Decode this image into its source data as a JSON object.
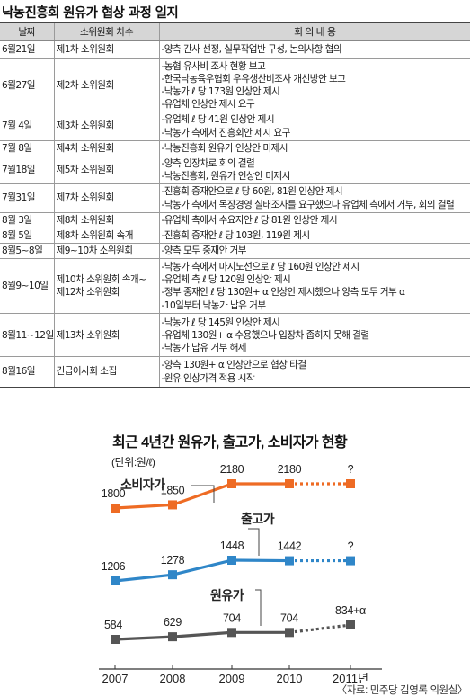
{
  "table": {
    "title": "낙농진흥회 원유가 협상 과정 일지",
    "headers": [
      "날짜",
      "소위원회 차수",
      "회 의 내 용"
    ],
    "rows": [
      {
        "date": "6월21일",
        "session": [
          "제1차 소위원회"
        ],
        "content": [
          "-양측 간사 선정, 실무작업반 구성, 논의사항 협의"
        ]
      },
      {
        "date": "6월27일",
        "session": [
          "제2차 소위원회"
        ],
        "content": [
          "-농협 유사비 조사 현황 보고",
          "-한국낙농육우협회 우유생산비조사 개선방안 보고",
          "-낙농가 ℓ 당 173원 인상안 제시",
          "-유업체 인상안 제시 요구"
        ]
      },
      {
        "date": "7월 4일",
        "session": [
          "제3차 소위원회"
        ],
        "content": [
          "-유업체 ℓ 당 41원 인상안 제시",
          "-낙농가 측에서 진흥회안 제시 요구"
        ]
      },
      {
        "date": "7월 8일",
        "session": [
          "제4차 소위원회"
        ],
        "content": [
          "-낙농진흥회 원유가 인상안 미제시"
        ]
      },
      {
        "date": "7월18일",
        "session": [
          "제5차 소위원회"
        ],
        "content": [
          "-양측 입장차로 회의 결렬",
          "-낙농진흥회, 원유가 인상안 미제시"
        ]
      },
      {
        "date": "7월31일",
        "session": [
          "제7차 소위원회"
        ],
        "content": [
          "-진흥회 중재안으로 ℓ 당 60원, 81원 인상안 제시",
          "-낙농가 측에서 목장경영 실태조사를 요구했으나 유업체 측에서 거부, 회의 결렬"
        ]
      },
      {
        "date": "8월 3일",
        "session": [
          "제8차 소위원회"
        ],
        "content": [
          "-유업체 측에서 수요자안 ℓ 당 81원 인상안 제시"
        ]
      },
      {
        "date": "8월 5일",
        "session": [
          "제8차 소위원회 속개"
        ],
        "content": [
          "-진흥회 중재안 ℓ 당 103원, 119원 제시"
        ]
      },
      {
        "date": "8월5~8일",
        "session": [
          "제9~10차 소위원회"
        ],
        "content": [
          "-양측 모두 중재안 거부"
        ]
      },
      {
        "date": "8월9~10일",
        "session": [
          "제10차 소위원회 속개~",
          "제12차 소위원회"
        ],
        "content": [
          "-낙농가 측에서 마지노선으로 ℓ 당 160원 인상안 제시",
          "-유업체 측 ℓ 당 120원 인상안 제시",
          "-정부 중재안 ℓ 당 130원+ α 인상안 제시했으나 양측 모두 거부 α",
          "-10일부터 낙농가 납유 거부"
        ]
      },
      {
        "date": "8월11~12일",
        "session": [
          "제13차 소위원회"
        ],
        "content": [
          "-낙농가 ℓ 당 145원 인상안 제시",
          "-유업체 130원+ α 수용했으나 입장차 좁히지 못해 결렬",
          "-낙농가 납유 거부 해제"
        ]
      },
      {
        "date": "8월16일",
        "session": [
          "긴급이사회 소집"
        ],
        "content": [
          "-양측 130원+ α 인상안으로 협상 타결",
          "-원유 인상가격 적용 시작"
        ]
      }
    ]
  },
  "chart_data": {
    "type": "line",
    "title": "최근 4년간 원유가, 출고가, 소비자가 현황",
    "unit": "(단위:원/ℓ)",
    "categories": [
      "2007",
      "2008",
      "2009",
      "2010",
      "2011년"
    ],
    "series": [
      {
        "name": "소비자가",
        "color": "#ee6b24",
        "values": [
          1800,
          1850,
          2180,
          2180,
          null
        ],
        "labels": [
          "1800",
          "1850",
          "2180",
          "2180",
          "?"
        ]
      },
      {
        "name": "출고가",
        "color": "#2f86c8",
        "values": [
          1206,
          1278,
          1448,
          1442,
          null
        ],
        "labels": [
          "1206",
          "1278",
          "1448",
          "1442",
          "?"
        ]
      },
      {
        "name": "원유가",
        "color": "#555555",
        "values": [
          584,
          629,
          704,
          704,
          834
        ],
        "labels": [
          "584",
          "629",
          "704",
          "704",
          "834+α"
        ]
      }
    ],
    "source": "〈자료: 민주당 김영록 의원실〉"
  }
}
